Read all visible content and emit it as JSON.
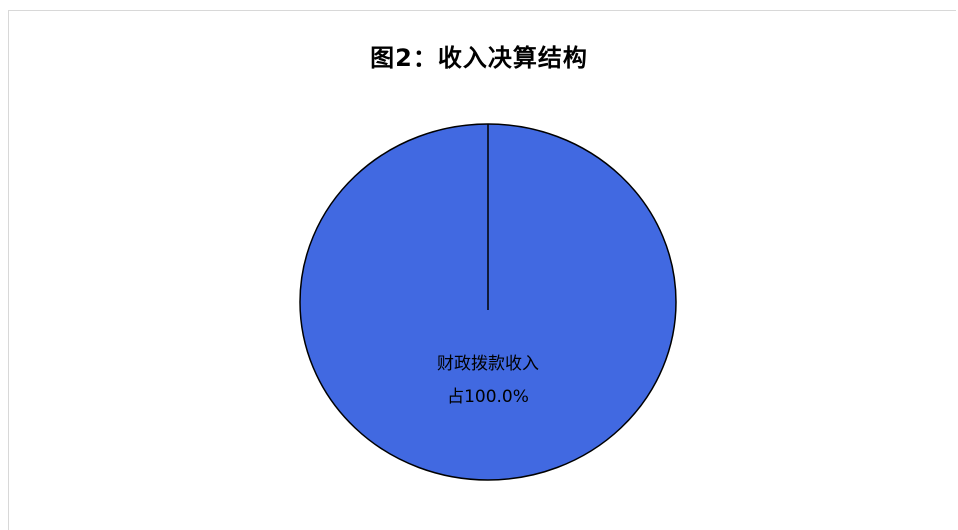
{
  "chart_data": {
    "type": "pie",
    "title": "图2：收入决算结构",
    "slices": [
      {
        "name": "财政拨款收入",
        "value": 100.0,
        "label": "财政拨款收入",
        "percent_label": "占100.0%"
      }
    ],
    "colors": {
      "slice": "#4169E1",
      "stroke": "#000000"
    },
    "legend": "none"
  }
}
